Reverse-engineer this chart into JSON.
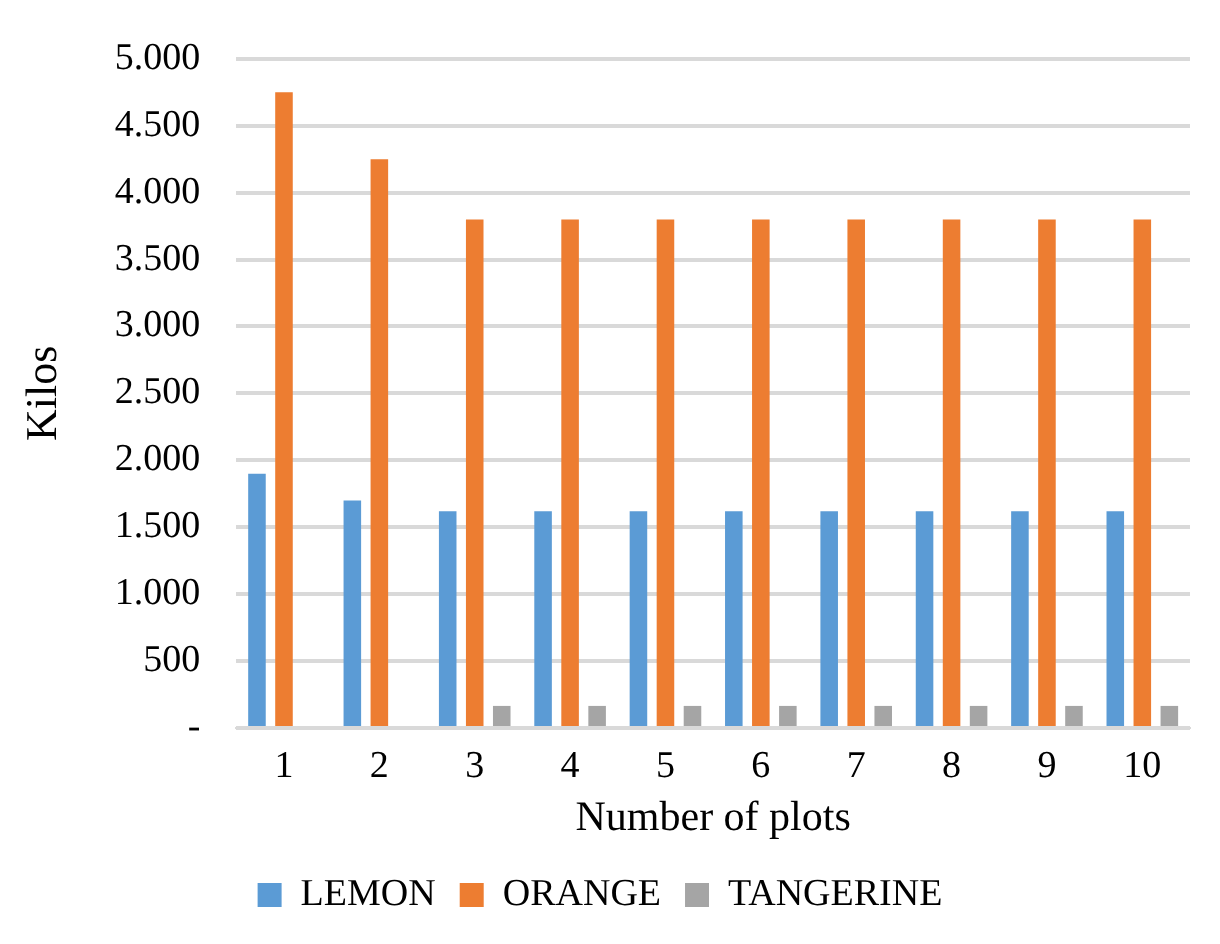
{
  "chart_data": {
    "type": "bar",
    "xlabel": "Number of plots",
    "ylabel": "Kilos",
    "categories": [
      "1",
      "2",
      "3",
      "4",
      "5",
      "6",
      "7",
      "8",
      "9",
      "10"
    ],
    "series": [
      {
        "name": "LEMON",
        "color": "#5b9bd5",
        "values": [
          1900,
          1700,
          1620,
          1620,
          1620,
          1620,
          1620,
          1620,
          1620,
          1620
        ]
      },
      {
        "name": "ORANGE",
        "color": "#ed7d31",
        "values": [
          4750,
          4250,
          3800,
          3800,
          3800,
          3800,
          3800,
          3800,
          3800,
          3800
        ]
      },
      {
        "name": "TANGERINE",
        "color": "#a5a5a5",
        "values": [
          0,
          0,
          165,
          165,
          165,
          165,
          165,
          165,
          165,
          165
        ]
      }
    ],
    "ylim": [
      0,
      5000
    ],
    "yticks": [
      {
        "value": 0,
        "label": "-"
      },
      500,
      {
        "value": 1000,
        "label": "1.000"
      },
      {
        "value": 1500,
        "label": "1.500"
      },
      {
        "value": 2000,
        "label": "2.000"
      },
      {
        "value": 2500,
        "label": "2.500"
      },
      {
        "value": 3000,
        "label": "3.000"
      },
      {
        "value": 3500,
        "label": "3.500"
      },
      {
        "value": 4000,
        "label": "4.000"
      },
      {
        "value": 4500,
        "label": "4.500"
      },
      {
        "value": 5000,
        "label": "5.000"
      }
    ],
    "grid": "y",
    "legend": "bottom"
  }
}
